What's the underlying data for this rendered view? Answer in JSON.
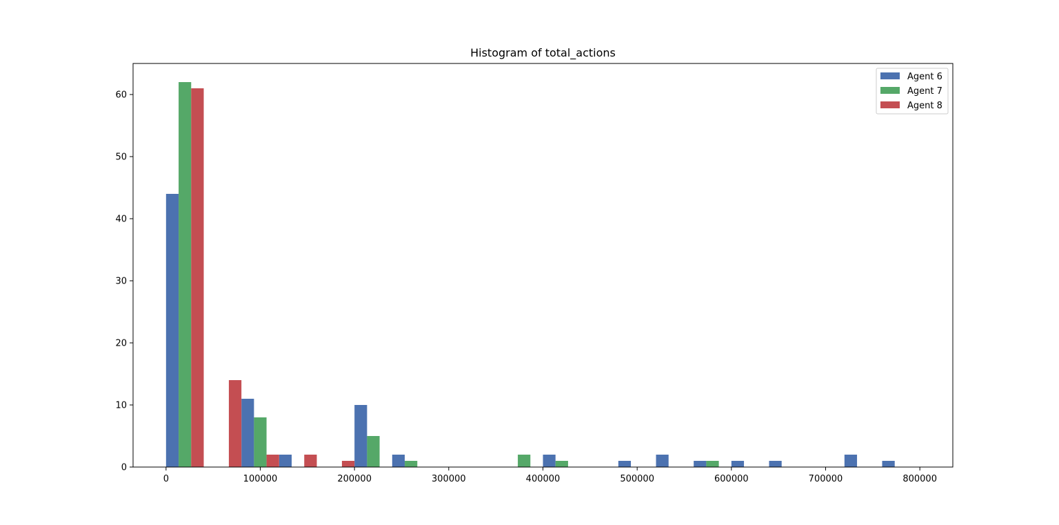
{
  "chart_data": {
    "type": "bar",
    "title": "Histogram of total_actions",
    "xlabel": "",
    "ylabel": "",
    "xlim": [
      -35000,
      835000
    ],
    "ylim": [
      0,
      65
    ],
    "xticks": [
      0,
      100000,
      200000,
      300000,
      400000,
      500000,
      600000,
      700000,
      800000
    ],
    "yticks": [
      0,
      10,
      20,
      30,
      40,
      50,
      60
    ],
    "grid": false,
    "legend_position": "top-right",
    "bin_start": 0,
    "bin_width": 40000,
    "series": [
      {
        "name": "Agent 6",
        "color": "#4c72b0",
        "values": [
          44,
          0,
          11,
          2,
          0,
          10,
          2,
          0,
          0,
          0,
          2,
          0,
          1,
          2,
          1,
          1,
          1,
          0,
          2,
          1
        ]
      },
      {
        "name": "Agent 7",
        "color": "#55a868",
        "values": [
          62,
          0,
          8,
          0,
          0,
          5,
          1,
          0,
          0,
          2,
          1,
          0,
          0,
          0,
          1,
          0,
          0,
          0,
          0,
          0
        ]
      },
      {
        "name": "Agent 8",
        "color": "#c44e52",
        "values": [
          61,
          14,
          2,
          2,
          1,
          0,
          0,
          0,
          0,
          0,
          0,
          0,
          0,
          0,
          0,
          0,
          0,
          0,
          0,
          0
        ]
      }
    ]
  }
}
